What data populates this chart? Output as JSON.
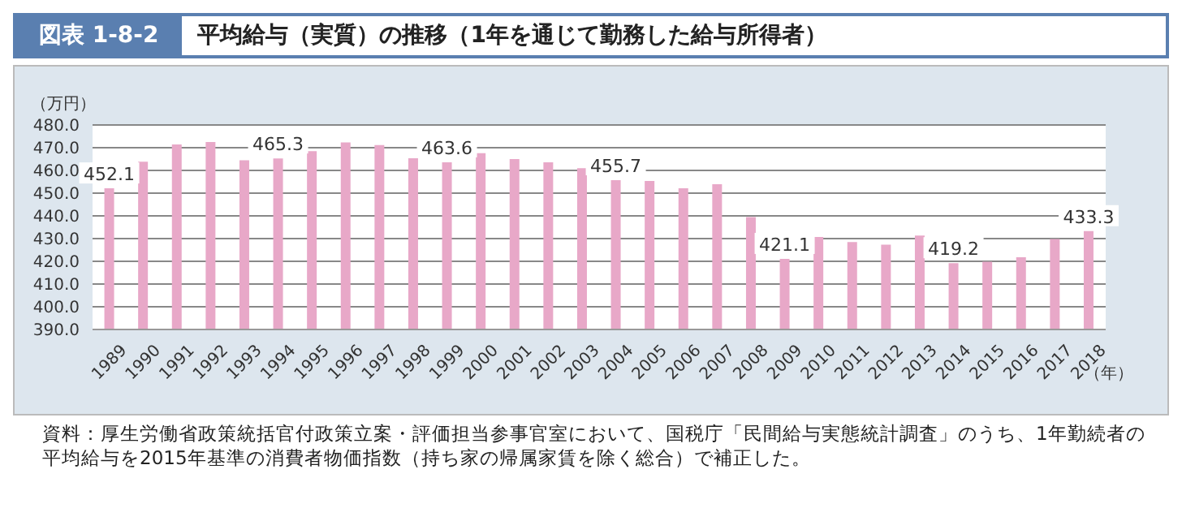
{
  "chart_data": {
    "type": "bar",
    "title": "図表 1-8-2　平均給与（実質）の推移（1年を通じて勤務した給与所得者）",
    "ylabel": "（万円）",
    "xlabel": "（年）",
    "categories": [
      "1989",
      "1990",
      "1991",
      "1992",
      "1993",
      "1994",
      "1995",
      "1996",
      "1997",
      "1998",
      "1999",
      "2000",
      "2001",
      "2002",
      "2003",
      "2004",
      "2005",
      "2006",
      "2007",
      "2008",
      "2009",
      "2010",
      "2011",
      "2012",
      "2013",
      "2014",
      "2015",
      "2016",
      "2017",
      "2018"
    ],
    "values": [
      452.1,
      463.8,
      471.4,
      472.5,
      464.5,
      465.3,
      468.5,
      472.3,
      471.2,
      465.4,
      463.6,
      467.6,
      465.0,
      463.6,
      461.0,
      455.7,
      455.4,
      452.1,
      453.9,
      439.5,
      421.1,
      430.7,
      428.5,
      427.3,
      431.3,
      419.2,
      419.8,
      421.8,
      429.8,
      433.3
    ],
    "value_labels": [
      "452.1",
      null,
      null,
      null,
      null,
      "465.3",
      null,
      null,
      null,
      null,
      "463.6",
      null,
      null,
      null,
      null,
      "455.7",
      null,
      null,
      null,
      null,
      "421.1",
      null,
      null,
      null,
      null,
      "419.2",
      null,
      null,
      null,
      "433.3"
    ],
    "color": "#e8a8c8",
    "ylim": [
      390,
      480
    ],
    "yticks": [
      {
        "value": 390,
        "label": "390.0"
      },
      {
        "value": 400,
        "label": "400.0"
      },
      {
        "value": 410,
        "label": "410.0"
      },
      {
        "value": 420,
        "label": "420.0"
      },
      {
        "value": 430,
        "label": "430.0"
      },
      {
        "value": 440,
        "label": "440.0"
      },
      {
        "value": 450,
        "label": "450.0"
      },
      {
        "value": 460,
        "label": "460.0"
      },
      {
        "value": 470,
        "label": "470.0"
      },
      {
        "value": 480,
        "label": "480.0"
      }
    ],
    "grid": "y",
    "legend": false,
    "annotations": [
      "資料：厚生労働省政策統括官付政策立案・評価担当参事官室において、国税庁「民間給与実態統計調査」のうち、1年勤続者の平均給与を2015年基準の消費者物価指数（持ち家の帰属家賃を除く総合）で補正した。"
    ]
  }
}
